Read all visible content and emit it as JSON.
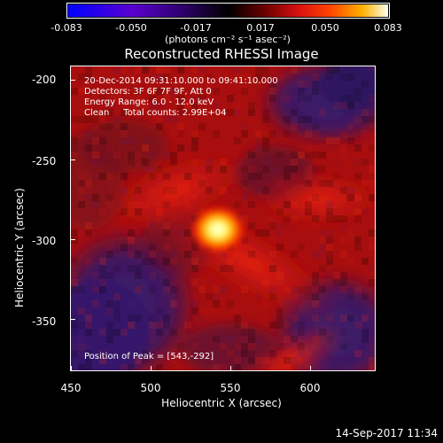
{
  "colorbar": {
    "labels": [
      "-0.083",
      "-0.050",
      "-0.017",
      "0.017",
      "0.050",
      "0.083"
    ],
    "unit": "(photons cm⁻² s⁻¹ asec⁻²)"
  },
  "title": "Reconstructed RHESSI Image",
  "info": {
    "time": "20-Dec-2014 09:31:10.000 to 09:41:10.000",
    "detectors": "Detectors: 3F 6F 7F 9F, Att 0",
    "energy": "Energy Range: 6.0 - 12.0 keV",
    "clean": "Clean     Total counts: 2.99E+04"
  },
  "peak": "Position of Peak = [543,-292]",
  "axes": {
    "xlabel": "Heliocentric X (arcsec)",
    "ylabel": "Heliocentric Y (arcsec)",
    "xticks": [
      "450",
      "500",
      "550",
      "600"
    ],
    "yticks": [
      "-200",
      "-250",
      "-300",
      "-350"
    ]
  },
  "timestamp": "14-Sep-2017 11:34",
  "colors": {
    "cold": "#3b1f6b",
    "mid": "#b01010",
    "warm": "#ff3a00",
    "peak": "#ffffe0"
  }
}
